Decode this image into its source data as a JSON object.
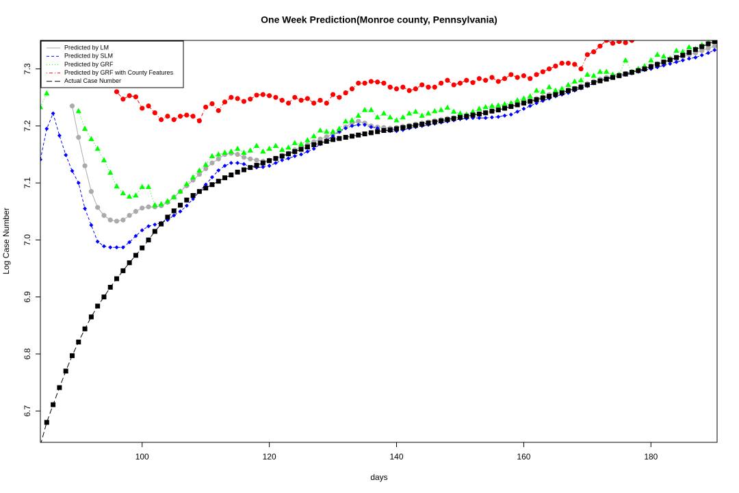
{
  "chart_data": {
    "type": "line",
    "title": "One Week Prediction(Monroe county, Pennsylvania)",
    "x_label": "days",
    "y_label": "Log Case Number",
    "xlim": [
      84,
      190.4
    ],
    "ylim": [
      6.645,
      7.35
    ],
    "xticks": [
      100,
      120,
      140,
      160,
      180
    ],
    "yticks": [
      6.7,
      6.8,
      6.9,
      {
        "value": 7,
        "label": "7.0"
      },
      7.1,
      7.2,
      7.3
    ],
    "legend": "top-left",
    "x": [
      84,
      85,
      86,
      87,
      88,
      89,
      90,
      91,
      92,
      93,
      94,
      95,
      96,
      97,
      98,
      99,
      100,
      101,
      102,
      103,
      104,
      105,
      106,
      107,
      108,
      109,
      110,
      111,
      112,
      113,
      114,
      115,
      116,
      117,
      118,
      119,
      120,
      121,
      122,
      123,
      124,
      125,
      126,
      127,
      128,
      129,
      130,
      131,
      132,
      133,
      134,
      135,
      136,
      137,
      138,
      139,
      140,
      141,
      142,
      143,
      144,
      145,
      146,
      147,
      148,
      149,
      150,
      151,
      152,
      153,
      154,
      155,
      156,
      157,
      158,
      159,
      160,
      161,
      162,
      163,
      164,
      165,
      166,
      167,
      168,
      169,
      170,
      171,
      172,
      173,
      174,
      175,
      176,
      177,
      178,
      179,
      180,
      181,
      182,
      183,
      184,
      185,
      186,
      187,
      188,
      189,
      190
    ],
    "series": [
      {
        "name": "Predicted by LM",
        "color": "#aaaaaa",
        "marker": "circle",
        "line_style": "solid",
        "values": [
          null,
          null,
          null,
          null,
          null,
          7.235,
          7.18,
          7.13,
          7.085,
          7.057,
          7.043,
          7.035,
          7.033,
          7.035,
          7.043,
          7.05,
          7.056,
          7.058,
          7.058,
          7.06,
          7.066,
          7.075,
          7.085,
          7.095,
          7.105,
          7.115,
          7.125,
          7.135,
          7.142,
          7.15,
          7.152,
          7.15,
          7.145,
          7.142,
          7.14,
          7.138,
          7.14,
          7.143,
          7.148,
          7.152,
          7.158,
          7.163,
          7.167,
          7.172,
          7.177,
          7.181,
          7.186,
          7.19,
          7.198,
          7.205,
          7.208,
          7.205,
          7.2,
          7.198,
          7.197,
          7.196,
          7.197,
          7.199,
          7.201,
          7.203,
          7.205,
          7.207,
          7.209,
          7.211,
          7.213,
          7.214,
          7.215,
          7.217,
          7.219,
          7.221,
          7.223,
          7.226,
          7.228,
          7.231,
          7.234,
          7.237,
          7.24,
          7.244,
          7.248,
          7.251,
          7.255,
          7.257,
          7.26,
          7.263,
          7.266,
          7.27,
          7.274,
          7.278,
          7.282,
          7.285,
          7.288,
          7.29,
          7.292,
          7.295,
          7.298,
          7.301,
          7.305,
          7.309,
          7.312,
          7.315,
          7.318,
          7.322,
          7.325,
          7.328,
          7.332,
          7.336,
          7.34
        ]
      },
      {
        "name": "Predicted by SLM",
        "color": "#0000ff",
        "marker": "diamond",
        "line_style": "dashed",
        "values": [
          7.141,
          7.195,
          7.222,
          7.183,
          7.149,
          7.121,
          7.1,
          7.055,
          7.026,
          6.997,
          6.989,
          6.987,
          6.987,
          6.987,
          6.996,
          7.007,
          7.017,
          7.024,
          7.027,
          7.03,
          7.035,
          7.043,
          7.05,
          7.06,
          7.072,
          7.085,
          7.097,
          7.11,
          7.122,
          7.13,
          7.135,
          7.135,
          7.133,
          7.128,
          7.127,
          7.128,
          7.13,
          7.135,
          7.14,
          7.143,
          7.147,
          7.15,
          7.155,
          7.16,
          7.168,
          7.175,
          7.182,
          7.19,
          7.196,
          7.2,
          7.202,
          7.202,
          7.198,
          7.196,
          7.193,
          7.191,
          7.191,
          7.193,
          7.196,
          7.198,
          7.2,
          7.202,
          7.204,
          7.206,
          7.208,
          7.21,
          7.212,
          7.213,
          7.214,
          7.214,
          7.214,
          7.215,
          7.216,
          7.218,
          7.22,
          7.225,
          7.23,
          7.235,
          7.24,
          7.244,
          7.248,
          7.252,
          7.255,
          7.258,
          7.262,
          7.266,
          7.27,
          7.275,
          7.28,
          7.283,
          7.286,
          7.288,
          7.29,
          7.292,
          7.295,
          7.298,
          7.3,
          7.303,
          7.306,
          7.309,
          7.312,
          7.315,
          7.318,
          7.32,
          7.324,
          7.328,
          7.333
        ]
      },
      {
        "name": "Predicted by GRF",
        "color": "#00ff00",
        "marker": "triangle",
        "line_style": "dotted",
        "values": [
          7.233,
          7.257,
          null,
          null,
          null,
          null,
          7.226,
          7.195,
          7.177,
          7.16,
          7.14,
          7.118,
          7.094,
          7.082,
          7.076,
          7.078,
          7.093,
          7.093,
          7.061,
          7.063,
          7.068,
          7.075,
          7.085,
          7.098,
          7.11,
          7.122,
          7.132,
          7.147,
          7.15,
          7.153,
          7.155,
          7.16,
          7.153,
          7.157,
          7.165,
          7.155,
          7.16,
          7.165,
          7.158,
          7.162,
          7.17,
          7.168,
          7.175,
          7.182,
          7.192,
          7.19,
          7.19,
          7.195,
          7.208,
          7.21,
          7.218,
          7.228,
          7.228,
          7.215,
          7.222,
          7.215,
          7.21,
          7.215,
          7.222,
          7.225,
          7.218,
          7.222,
          7.226,
          7.228,
          7.232,
          7.225,
          7.222,
          7.22,
          7.225,
          7.23,
          7.233,
          7.235,
          7.236,
          7.238,
          7.24,
          7.245,
          7.248,
          7.252,
          7.262,
          7.26,
          7.268,
          7.262,
          7.265,
          7.272,
          7.278,
          7.28,
          7.29,
          7.288,
          7.295,
          7.295,
          7.29,
          7.29,
          7.315,
          7.295,
          7.3,
          7.305,
          7.315,
          7.325,
          7.322,
          7.318,
          7.332,
          7.33,
          7.338,
          7.335,
          7.342,
          7.345,
          7.35
        ]
      },
      {
        "name": "Predicted by GRF with County Features",
        "color": "#ff0000",
        "marker": "circle",
        "line_style": "dotdash",
        "values": [
          null,
          null,
          null,
          null,
          null,
          null,
          null,
          null,
          null,
          null,
          null,
          null,
          7.26,
          7.247,
          7.253,
          7.251,
          7.231,
          7.235,
          7.223,
          7.211,
          7.217,
          7.211,
          7.217,
          7.219,
          7.217,
          7.209,
          7.233,
          7.239,
          7.227,
          7.242,
          7.25,
          7.248,
          7.243,
          7.247,
          7.254,
          7.255,
          7.253,
          7.25,
          7.245,
          7.24,
          7.25,
          7.245,
          7.248,
          7.24,
          7.245,
          7.24,
          7.255,
          7.25,
          7.258,
          7.265,
          7.275,
          7.275,
          7.278,
          7.277,
          7.275,
          7.268,
          7.265,
          7.268,
          7.262,
          7.265,
          7.272,
          7.268,
          7.268,
          7.275,
          7.28,
          7.272,
          7.275,
          7.28,
          7.276,
          7.283,
          7.28,
          7.285,
          7.278,
          7.283,
          7.29,
          7.285,
          7.288,
          7.283,
          7.29,
          7.295,
          7.3,
          7.305,
          7.31,
          7.31,
          7.308,
          7.3,
          7.325,
          7.33,
          7.34,
          7.35,
          7.345,
          7.348,
          7.346,
          7.35,
          null,
          null,
          null,
          null,
          null,
          null,
          null,
          null,
          null,
          null,
          null,
          null,
          null
        ]
      },
      {
        "name": "Actual Case Number",
        "color": "#000000",
        "marker": "square",
        "line_style": "longdash",
        "values": [
          6.64,
          6.68,
          6.711,
          6.741,
          6.77,
          6.797,
          6.821,
          6.844,
          6.865,
          6.884,
          6.9,
          6.917,
          6.932,
          6.946,
          6.96,
          6.973,
          6.986,
          7.0,
          7.015,
          7.028,
          7.04,
          7.051,
          7.061,
          7.07,
          7.078,
          7.085,
          7.091,
          7.097,
          7.103,
          7.109,
          7.114,
          7.119,
          7.123,
          7.127,
          7.131,
          7.135,
          7.139,
          7.143,
          7.147,
          7.151,
          7.155,
          7.159,
          7.163,
          7.167,
          7.17,
          7.173,
          7.176,
          7.178,
          7.18,
          7.182,
          7.184,
          7.186,
          7.188,
          7.19,
          7.192,
          7.193,
          7.195,
          7.197,
          7.199,
          7.201,
          7.203,
          7.205,
          7.207,
          7.209,
          7.211,
          7.213,
          7.215,
          7.217,
          7.219,
          7.221,
          7.223,
          7.226,
          7.228,
          7.231,
          7.234,
          7.237,
          7.24,
          7.243,
          7.246,
          7.249,
          7.252,
          7.255,
          7.258,
          7.262,
          7.265,
          7.268,
          7.272,
          7.276,
          7.279,
          7.282,
          7.285,
          7.288,
          7.291,
          7.294,
          7.297,
          7.3,
          7.304,
          7.308,
          7.312,
          7.316,
          7.32,
          7.324,
          7.329,
          7.334,
          7.339,
          7.344,
          7.348
        ]
      }
    ]
  }
}
